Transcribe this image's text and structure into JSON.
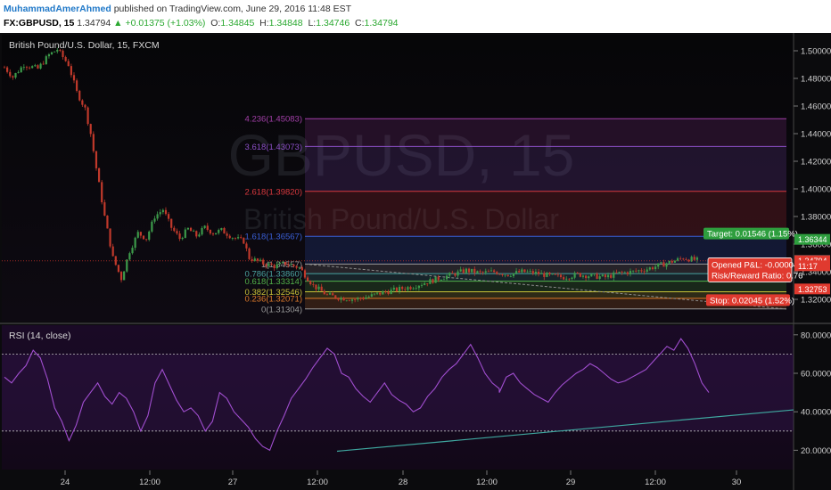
{
  "header": {
    "author": "MuhammadAmerAhmed",
    "published": "published on TradingView.com, June 29, 2016 11:48 EST",
    "symbol": "FX:GBPUSD, 15",
    "last": "1.34794",
    "change": "+0.01375 (+1.03%)",
    "ohlc": [
      {
        "k": "O:",
        "v": "1.34845"
      },
      {
        "k": "H:",
        "v": "1.34848"
      },
      {
        "k": "L:",
        "v": "1.34746"
      },
      {
        "k": "C:",
        "v": "1.34794"
      }
    ]
  },
  "chart_data": [
    {
      "type": "candlestick",
      "title": "British Pound/U.S. Dollar, 15, FXCM",
      "watermark": {
        "symbol": "GBPUSD, 15",
        "name": "British Pound/U.S. Dollar"
      },
      "ylim": [
        1.3,
        1.51
      ],
      "y_ticks": [
        "1.50000",
        "1.48000",
        "1.46000",
        "1.44000",
        "1.42000",
        "1.40000",
        "1.38000",
        "1.36000",
        "1.34000",
        "1.32000"
      ],
      "x_ticks": [
        "24",
        "12:00",
        "27",
        "12:00",
        "28",
        "12:00",
        "29",
        "12:00",
        "30"
      ],
      "colors": {
        "up": "#3c9a4a",
        "down": "#c0392b",
        "wick": "#444444"
      },
      "price_path": [
        [
          0,
          1.488
        ],
        [
          0.3,
          1.481
        ],
        [
          0.7,
          1.49
        ],
        [
          1.2,
          1.487
        ],
        [
          1.6,
          1.497
        ],
        [
          1.9,
          1.501
        ],
        [
          2.3,
          1.49
        ],
        [
          2.6,
          1.47
        ],
        [
          2.9,
          1.458
        ],
        [
          3.1,
          1.44
        ],
        [
          3.3,
          1.415
        ],
        [
          3.6,
          1.38
        ],
        [
          3.9,
          1.35
        ],
        [
          4.2,
          1.335
        ],
        [
          4.5,
          1.355
        ],
        [
          4.8,
          1.368
        ],
        [
          5.1,
          1.364
        ],
        [
          5.4,
          1.38
        ],
        [
          5.7,
          1.385
        ],
        [
          6.0,
          1.372
        ],
        [
          6.3,
          1.364
        ],
        [
          6.6,
          1.371
        ],
        [
          6.9,
          1.366
        ],
        [
          7.2,
          1.372
        ],
        [
          7.5,
          1.368
        ],
        [
          7.8,
          1.37
        ],
        [
          8.2,
          1.365
        ],
        [
          8.6,
          1.362
        ],
        [
          8.8,
          1.35
        ],
        [
          9.3,
          1.346
        ],
        [
          9.7,
          1.344
        ],
        [
          10.1,
          1.346
        ],
        [
          10.6,
          1.343
        ],
        [
          11.1,
          1.33
        ],
        [
          11.6,
          1.323
        ],
        [
          12.1,
          1.321
        ],
        [
          12.6,
          1.32
        ],
        [
          13.1,
          1.322
        ],
        [
          13.6,
          1.325
        ],
        [
          14.1,
          1.327
        ],
        [
          14.6,
          1.329
        ],
        [
          15.1,
          1.332
        ],
        [
          15.6,
          1.335
        ],
        [
          16.1,
          1.338
        ],
        [
          16.6,
          1.341
        ],
        [
          17.1,
          1.339
        ],
        [
          17.6,
          1.34
        ],
        [
          18.1,
          1.338
        ],
        [
          18.6,
          1.34
        ],
        [
          19.1,
          1.339
        ],
        [
          19.6,
          1.337
        ],
        [
          20.1,
          1.336
        ],
        [
          20.6,
          1.338
        ],
        [
          21.1,
          1.337
        ],
        [
          21.6,
          1.336
        ],
        [
          22.1,
          1.339
        ],
        [
          22.6,
          1.34
        ],
        [
          23.1,
          1.342
        ],
        [
          23.6,
          1.345
        ],
        [
          24.1,
          1.348
        ],
        [
          24.4,
          1.35
        ],
        [
          24.7,
          1.349
        ],
        [
          25.0,
          1.348
        ]
      ],
      "fibonacci": {
        "levels": [
          {
            "label": "4.236(1.45083)",
            "price": 1.45083,
            "color": "#a23fa8"
          },
          {
            "label": "3.618(1.43073)",
            "price": 1.43073,
            "color": "#8b4fc6"
          },
          {
            "label": "2.618(1.39820)",
            "price": 1.3982,
            "color": "#d8383e"
          },
          {
            "label": "1.618(1.36567)",
            "price": 1.36567,
            "color": "#3a5fd6"
          },
          {
            "label": "1(1.34557)",
            "price": 1.34557,
            "color": "#9a9a9a"
          },
          {
            "label": "0.786(1.33860)",
            "price": 1.3386,
            "color": "#4aa3a0"
          },
          {
            "label": "0.618(1.33314)",
            "price": 1.33314,
            "color": "#52b24a"
          },
          {
            "label": "0.382(1.32546)",
            "price": 1.32546,
            "color": "#c7c237"
          },
          {
            "label": "0.236(1.32071)",
            "price": 1.32071,
            "color": "#e07b2a"
          },
          {
            "label": "0(1.31304)",
            "price": 1.31304,
            "color": "#9a9a9a"
          }
        ]
      },
      "position": {
        "target_label": "Target: 0.01546 (1.15%)",
        "pnl_label": "Opened P&L: -0.00004",
        "rr_label": "Risk/Reward Ratio: 0.76",
        "stop_label": "Stop: 0.02045 (1.52%)",
        "target_price": 1.36344,
        "entry_price": 1.34798,
        "stop_price": 1.32753
      },
      "price_tags": [
        {
          "label": "1.36344",
          "price": 1.36344,
          "color": "#2e9e3e",
          "text": "#ffffff"
        },
        {
          "label": "1.34798",
          "price": 1.34798,
          "color": "#ffffff",
          "text": "#000000"
        },
        {
          "label": "1.34794",
          "price": 1.34794,
          "color": "#e03a2f",
          "text": "#ffffff"
        },
        {
          "label": "11:17",
          "price": 1.3443,
          "color": "#e03a2f",
          "text": "#ffffff"
        },
        {
          "label": "1.32753",
          "price": 1.32753,
          "color": "#e03a2f",
          "text": "#ffffff"
        }
      ]
    },
    {
      "type": "line",
      "title": "RSI (14, close)",
      "ylim": [
        10,
        85
      ],
      "y_ticks": [
        "80.0000",
        "60.0000",
        "40.0000",
        "20.0000"
      ],
      "bands": [
        70,
        30
      ],
      "series": [
        {
          "values": [
            58,
            55,
            60,
            64,
            72,
            68,
            57,
            42,
            35,
            25,
            33,
            45,
            50,
            55,
            48,
            44,
            50,
            47,
            40,
            30,
            38,
            55,
            62,
            54,
            46,
            40,
            42,
            38,
            30,
            35,
            50,
            47,
            40,
            36,
            32,
            26,
            22,
            20,
            30,
            38,
            47,
            52,
            57,
            63,
            68,
            73,
            70,
            60,
            58,
            52,
            48,
            45,
            50,
            55,
            49,
            46,
            44,
            40,
            42,
            48,
            52,
            58,
            62,
            65,
            70,
            75,
            68,
            60,
            55,
            52
          ]
        },
        {
          "values": [
            50,
            58,
            60,
            55,
            52,
            49,
            47,
            45,
            50,
            54,
            57,
            60,
            62,
            65,
            63,
            60,
            57,
            55,
            56,
            58,
            60,
            62,
            66,
            70,
            74,
            72,
            78,
            73,
            65,
            55,
            50
          ]
        }
      ],
      "trendline": {
        "from": [
          20,
          19.5
        ],
        "to": [
          38,
          41
        ]
      }
    }
  ]
}
